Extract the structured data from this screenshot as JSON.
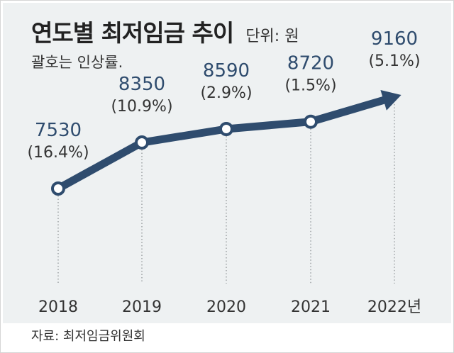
{
  "title": "연도별 최저임금 추이",
  "unit_label": "단위: 원",
  "subtitle": "괄호는 인상률.",
  "source": "자료: 최저임금위원회",
  "colors": {
    "line": "#2f4c6e",
    "background": "#eef1f2",
    "value_text": "#2f4c6e"
  },
  "chart_data": {
    "type": "line",
    "title": "연도별 최저임금 추이",
    "ylabel": "단위: 원",
    "xlabel": "",
    "categories": [
      "2018",
      "2019",
      "2020",
      "2021",
      "2022년"
    ],
    "values": [
      7530,
      8350,
      8590,
      8720,
      9160
    ],
    "value_labels": [
      "7530",
      "8350",
      "8590",
      "8720",
      "9160"
    ],
    "pct_labels": [
      "(16.4%)",
      "(10.9%)",
      "(2.9%)",
      "(1.5%)",
      "(5.1%)"
    ],
    "last_point_style": "arrow",
    "grid": false,
    "legend": "none"
  }
}
